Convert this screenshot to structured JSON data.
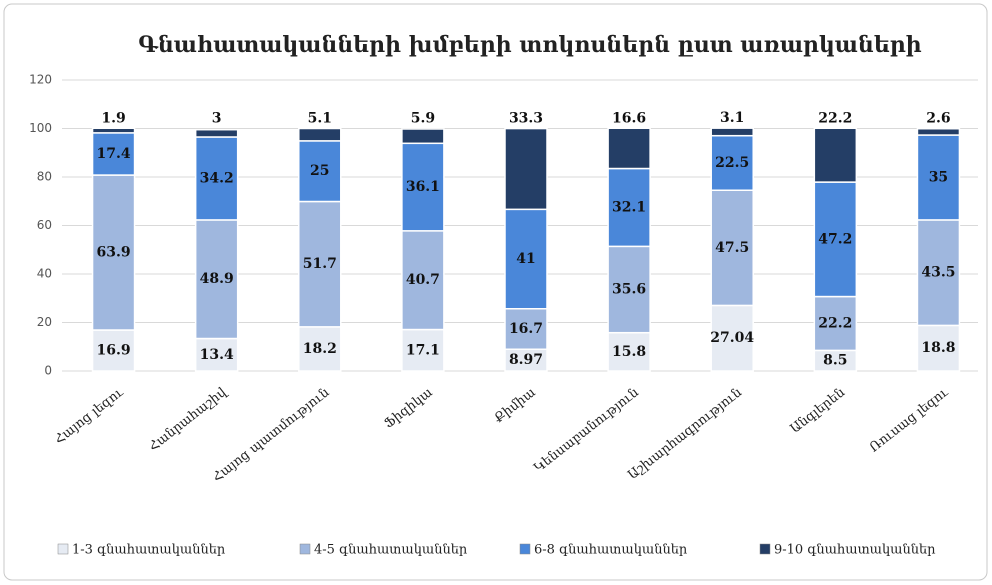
{
  "chart_data": {
    "type": "stacked_bar",
    "title": "Գնահատականների խմբերի տոկոսներն ըստ առարկաների",
    "categories": [
      "Հայոց լեզու",
      "Հանրահաշիվ",
      "Հայոց պատմություն",
      "Ֆիզիկա",
      "Քիմիա",
      "Կենսաբանություն",
      "Աշխարհագրություն",
      "Անգլերեն",
      "Ռուսաց լեզու"
    ],
    "series": [
      {
        "name": "1-3 գնահատականներ",
        "color": "#e6ebf3",
        "values": [
          16.9,
          13.4,
          18.2,
          17.1,
          8.97,
          15.8,
          27.04,
          8.5,
          18.8
        ]
      },
      {
        "name": "4-5 գնահատականներ",
        "color": "#9fb7de",
        "values": [
          63.9,
          48.9,
          51.7,
          40.7,
          16.7,
          35.6,
          47.5,
          22.2,
          43.5
        ]
      },
      {
        "name": "6-8 գնահատականներ",
        "color": "#4a87d9",
        "values": [
          17.4,
          34.2,
          25,
          36.1,
          41,
          32.1,
          22.5,
          47.2,
          35
        ]
      },
      {
        "name": "9-10 գնահատականներ",
        "color": "#243e66",
        "values": [
          1.9,
          3,
          5.1,
          5.9,
          33.3,
          16.6,
          3.1,
          22.2,
          2.6
        ]
      }
    ],
    "ylim": [
      0,
      120
    ],
    "yticks": [
      0,
      20,
      40,
      60,
      80,
      100,
      120
    ],
    "grid": true,
    "legend": "bottom"
  }
}
